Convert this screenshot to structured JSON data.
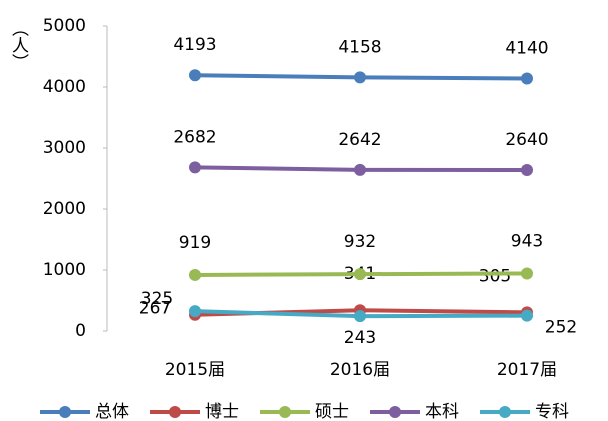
{
  "chart_data": {
    "type": "line",
    "y_axis_label": "（人）",
    "categories": [
      "2015届",
      "2016届",
      "2017届"
    ],
    "series": [
      {
        "name": "总体",
        "color": "#4a7ebb",
        "values": [
          4193,
          4158,
          4140
        ]
      },
      {
        "name": "博士",
        "color": "#be4b48",
        "values": [
          267,
          341,
          305
        ]
      },
      {
        "name": "硕士",
        "color": "#98b954",
        "values": [
          919,
          932,
          943
        ]
      },
      {
        "name": "本科",
        "color": "#7d5fa0",
        "values": [
          2682,
          2642,
          2640
        ]
      },
      {
        "name": "专科",
        "color": "#46aac5",
        "values": [
          325,
          243,
          252
        ]
      }
    ],
    "ylim": [
      0,
      5000
    ],
    "yticks": [
      0,
      1000,
      2000,
      3000,
      4000,
      5000
    ]
  }
}
